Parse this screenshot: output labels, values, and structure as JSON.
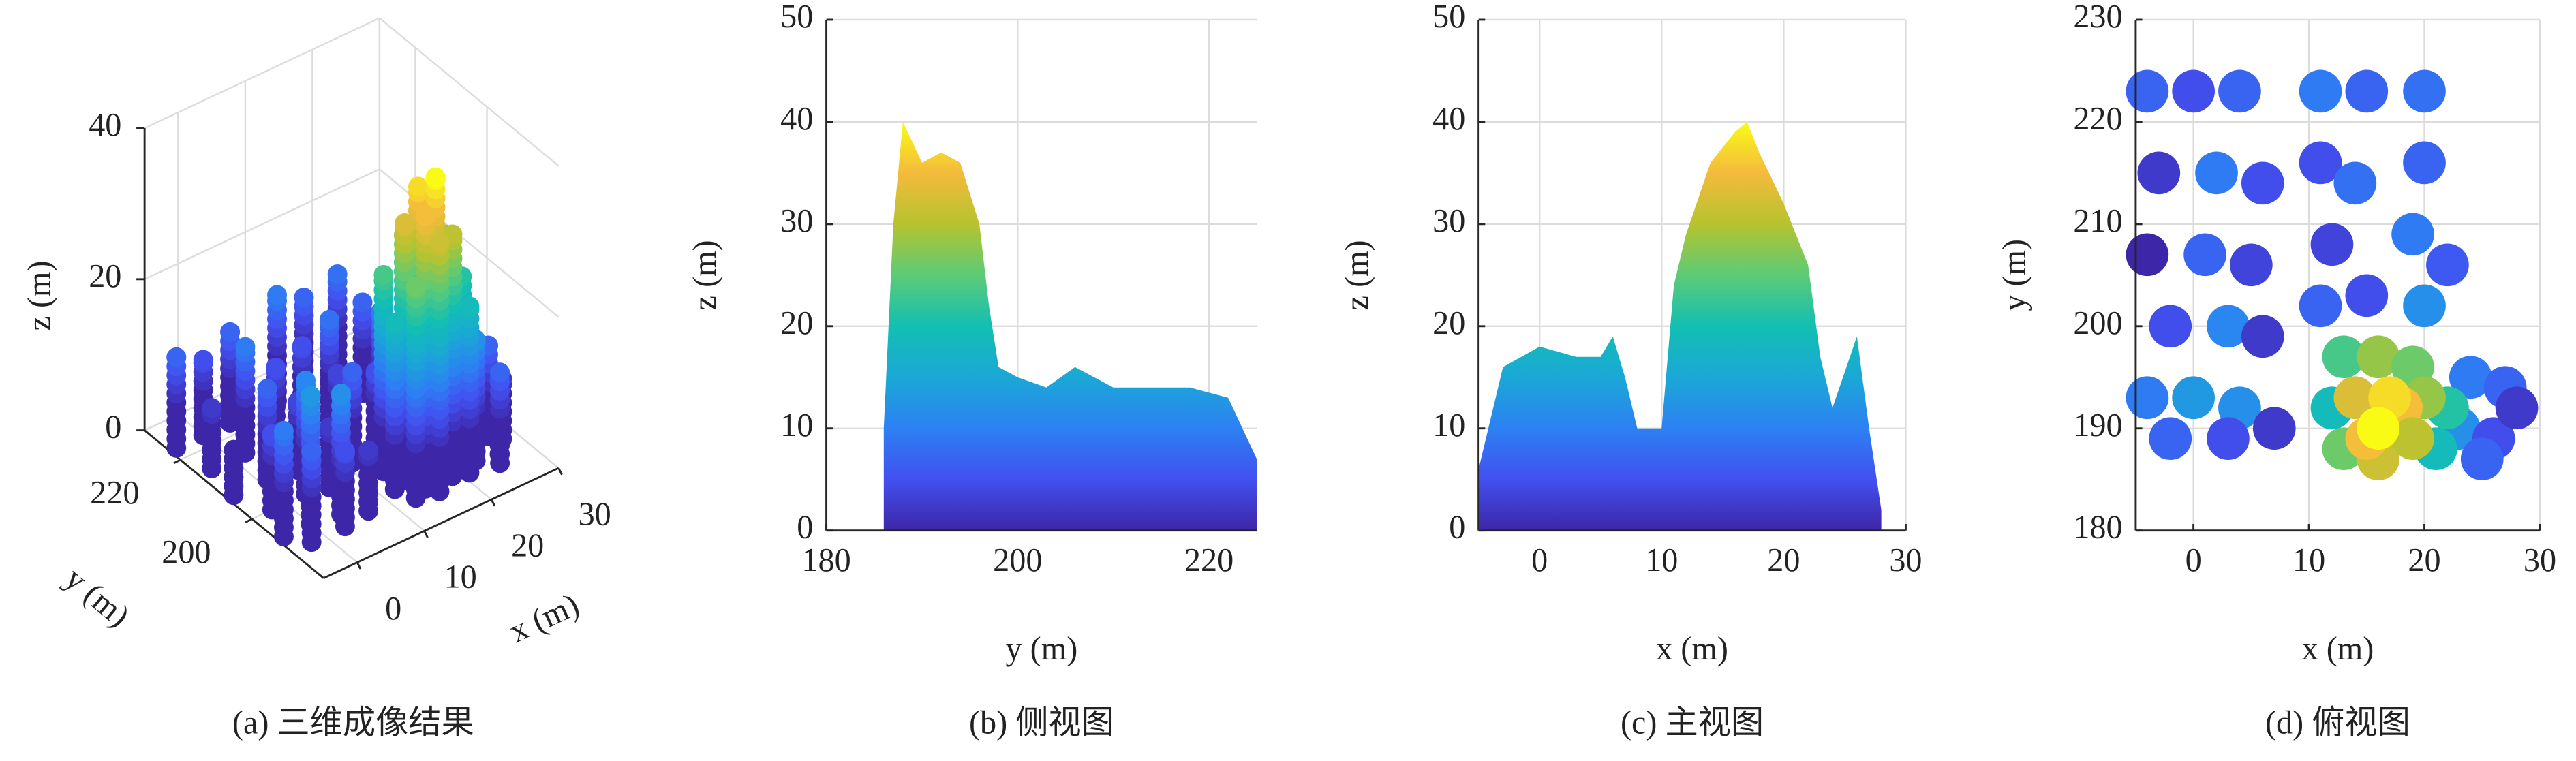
{
  "chart_data": [
    {
      "type": "scatter3d",
      "caption": "(a) 三维成像结果",
      "xlabel": "x (m)",
      "ylabel": "y (m)",
      "zlabel": "z (m)",
      "x": [
        -4,
        0,
        4,
        -3,
        2,
        6,
        -4,
        1,
        5,
        -2,
        3,
        6,
        -4,
        0,
        4,
        -2,
        3,
        7,
        11,
        15,
        20,
        11,
        20,
        12,
        19,
        22,
        11,
        15,
        20,
        14,
        13,
        16,
        19,
        12,
        14,
        16,
        18,
        20,
        22,
        15,
        17,
        19,
        13,
        21,
        16,
        24,
        27,
        23,
        26,
        28,
        25
      ],
      "y": [
        223,
        223,
        223,
        215,
        215,
        214,
        207,
        207,
        206,
        200,
        200,
        199,
        193,
        193,
        192,
        189,
        189,
        190,
        223,
        223,
        223,
        216,
        216,
        208,
        209,
        206,
        202,
        203,
        202,
        214,
        197,
        197,
        196,
        192,
        193,
        193,
        192,
        193,
        192,
        189,
        190,
        189,
        188,
        188,
        187,
        195,
        194,
        190,
        189,
        192,
        187
      ],
      "z": [
        12,
        10,
        12,
        8,
        14,
        10,
        6,
        12,
        9,
        10,
        15,
        8,
        14,
        17,
        16,
        12,
        10,
        8,
        14,
        12,
        13,
        10,
        12,
        9,
        14,
        11,
        12,
        10,
        16,
        13,
        26,
        30,
        28,
        22,
        34,
        38,
        36,
        30,
        24,
        36,
        40,
        32,
        28,
        22,
        33,
        14,
        12,
        16,
        10,
        8,
        12
      ],
      "xlim": [
        -5,
        30
      ],
      "ylim": [
        180,
        230
      ],
      "zlim": [
        0,
        40
      ],
      "xticks": [
        0,
        10,
        20,
        30
      ],
      "yticks": [
        200,
        220
      ],
      "zticks": [
        0,
        20,
        40
      ],
      "colormap": [
        "#3e26a8",
        "#4250f0",
        "#2c81f3",
        "#1aa8d6",
        "#13bfb2",
        "#5ccb76",
        "#b6c32f",
        "#f4ba3c",
        "#f9fb15"
      ],
      "grid": true
    },
    {
      "type": "area",
      "caption": "(b) 侧视图",
      "xlabel": "y (m)",
      "ylabel": "z (m)",
      "x": [
        186,
        187,
        188,
        190,
        192,
        194,
        196,
        197,
        198,
        200,
        203,
        206,
        210,
        214,
        218,
        222,
        225
      ],
      "values": [
        10,
        30,
        40,
        36,
        37,
        36,
        30,
        22,
        16,
        15,
        14,
        16,
        14,
        14,
        14,
        13,
        7
      ],
      "xlim": [
        180,
        225
      ],
      "ylim": [
        0,
        50
      ],
      "xticks": [
        180,
        200,
        220
      ],
      "yticks": [
        0,
        10,
        20,
        30,
        40,
        50
      ],
      "colormap": [
        "#3e26a8",
        "#4250f0",
        "#2c81f3",
        "#1aa8d6",
        "#13bfb2",
        "#5ccb76",
        "#b6c32f",
        "#f4ba3c",
        "#f9fb15"
      ],
      "grid": true
    },
    {
      "type": "area",
      "caption": "(c) 主视图",
      "xlabel": "x (m)",
      "ylabel": "z (m)",
      "x": [
        -5,
        -3,
        0,
        3,
        5,
        6,
        7,
        8,
        10,
        11,
        12,
        14,
        16,
        17,
        18,
        20,
        22,
        23,
        24,
        26,
        27,
        28
      ],
      "values": [
        6,
        16,
        18,
        17,
        17,
        19,
        15,
        10,
        10,
        24,
        29,
        36,
        39,
        40,
        37,
        32,
        26,
        17,
        12,
        19,
        10,
        2
      ],
      "xlim": [
        -5,
        30
      ],
      "ylim": [
        0,
        50
      ],
      "xticks": [
        0,
        10,
        20,
        30
      ],
      "yticks": [
        0,
        10,
        20,
        30,
        40,
        50
      ],
      "colormap": [
        "#3e26a8",
        "#4250f0",
        "#2c81f3",
        "#1aa8d6",
        "#13bfb2",
        "#5ccb76",
        "#b6c32f",
        "#f4ba3c",
        "#f9fb15"
      ],
      "grid": true
    },
    {
      "type": "scatter",
      "caption": "(d) 俯视图",
      "xlabel": "x (m)",
      "ylabel": "y (m)",
      "x": [
        -4,
        0,
        4,
        -3,
        2,
        6,
        -4,
        1,
        5,
        -2,
        3,
        6,
        -4,
        0,
        4,
        -2,
        3,
        7,
        11,
        15,
        20,
        11,
        20,
        12,
        19,
        22,
        11,
        15,
        20,
        14,
        24,
        27,
        23,
        26,
        28,
        25,
        13,
        16,
        19,
        12,
        22,
        13,
        21,
        14,
        20,
        18,
        16,
        19,
        15,
        17,
        16
      ],
      "y": [
        223,
        223,
        223,
        215,
        215,
        214,
        207,
        207,
        206,
        200,
        200,
        199,
        193,
        193,
        192,
        189,
        189,
        190,
        223,
        223,
        223,
        216,
        216,
        208,
        209,
        206,
        202,
        203,
        202,
        214,
        195,
        194,
        190,
        189,
        192,
        187,
        197,
        197,
        196,
        192,
        192,
        188,
        188,
        193,
        193,
        192,
        187,
        189,
        189,
        193,
        190
      ],
      "z": [
        12,
        10,
        12,
        8,
        14,
        10,
        6,
        12,
        9,
        10,
        15,
        8,
        14,
        17,
        16,
        12,
        10,
        8,
        14,
        12,
        13,
        10,
        12,
        9,
        14,
        11,
        12,
        10,
        16,
        13,
        14,
        12,
        16,
        10,
        8,
        12,
        26,
        30,
        28,
        22,
        24,
        28,
        22,
        34,
        30,
        36,
        33,
        32,
        36,
        38,
        40
      ],
      "xlim": [
        -5,
        30
      ],
      "ylim": [
        180,
        230
      ],
      "xticks": [
        0,
        10,
        20,
        30
      ],
      "yticks": [
        180,
        190,
        200,
        210,
        220,
        230
      ],
      "colormap": [
        "#3e26a8",
        "#4250f0",
        "#2c81f3",
        "#1aa8d6",
        "#13bfb2",
        "#5ccb76",
        "#b6c32f",
        "#f4ba3c",
        "#f9fb15"
      ],
      "grid": true
    }
  ]
}
